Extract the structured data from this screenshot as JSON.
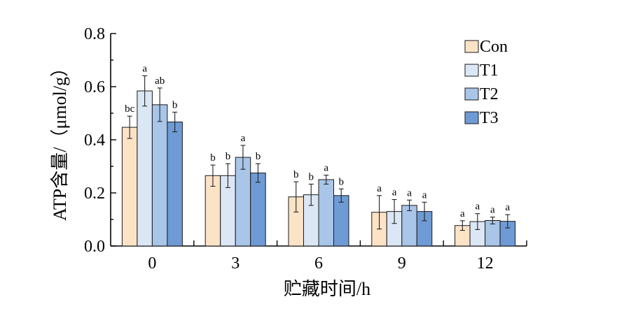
{
  "chart_data": {
    "type": "bar",
    "xlabel": "贮藏时间/h",
    "ylabel": "ATP含量/（μmol/g）",
    "ylim": [
      0,
      0.8
    ],
    "yticks": [
      "0.0",
      "0.2",
      "0.4",
      "0.6",
      "0.8"
    ],
    "categories": [
      "0",
      "3",
      "6",
      "9",
      "12"
    ],
    "legend_position": "top-right",
    "grid": false,
    "series": [
      {
        "name": "Con",
        "color": "#FDE3C6",
        "values": [
          0.447,
          0.265,
          0.185,
          0.127,
          0.077
        ],
        "errors": [
          0.042,
          0.04,
          0.057,
          0.063,
          0.018
        ],
        "letters": [
          "bc",
          "b",
          "b",
          "a",
          "a"
        ]
      },
      {
        "name": "T1",
        "color": "#DCE7F6",
        "values": [
          0.584,
          0.265,
          0.193,
          0.13,
          0.092
        ],
        "errors": [
          0.057,
          0.045,
          0.04,
          0.045,
          0.03
        ],
        "letters": [
          "a",
          "b",
          "b",
          "a",
          "a"
        ]
      },
      {
        "name": "T2",
        "color": "#A9C5E8",
        "values": [
          0.532,
          0.334,
          0.25,
          0.153,
          0.096
        ],
        "errors": [
          0.063,
          0.045,
          0.017,
          0.02,
          0.013
        ],
        "letters": [
          "ab",
          "a",
          "a",
          "a",
          "a"
        ]
      },
      {
        "name": "T3",
        "color": "#6E9BD5",
        "values": [
          0.467,
          0.275,
          0.19,
          0.13,
          0.093
        ],
        "errors": [
          0.037,
          0.035,
          0.025,
          0.035,
          0.025
        ],
        "letters": [
          "b",
          "b",
          "b",
          "a",
          "a"
        ]
      }
    ]
  }
}
